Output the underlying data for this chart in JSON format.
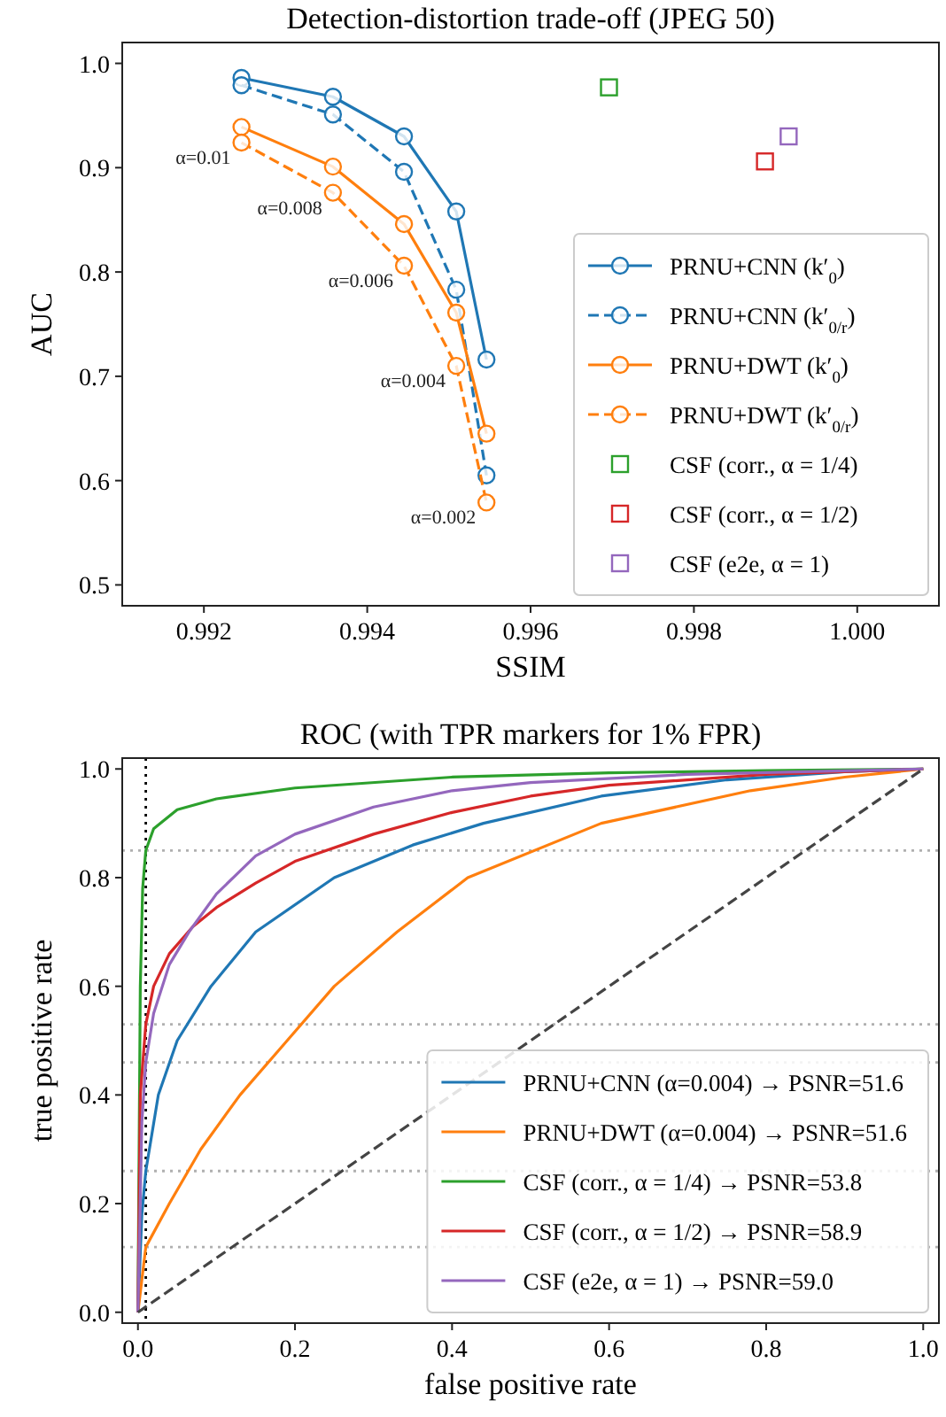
{
  "chart_data": [
    {
      "type": "line",
      "title": "Detection-distortion trade-off (JPEG 50)",
      "xlabel": "SSIM",
      "ylabel": "AUC",
      "x": [
        0.99246,
        0.99358,
        0.99445,
        0.99509,
        0.99546
      ],
      "xlim": [
        0.991,
        1.001
      ],
      "ylim": [
        0.48,
        1.02
      ],
      "xticks": [
        0.992,
        0.994,
        0.996,
        0.998,
        {
          "value": 1.0,
          "label": "1.000"
        }
      ],
      "yticks": [
        {
          "value": 0.5,
          "label": "0.5"
        },
        {
          "value": 0.6,
          "label": "0.6"
        },
        {
          "value": 0.7,
          "label": "0.7"
        },
        {
          "value": 0.8,
          "label": "0.8"
        },
        {
          "value": 0.9,
          "label": "0.9"
        },
        {
          "value": 1.0,
          "label": "1.0"
        }
      ],
      "marker": "circle",
      "legend": "bottom right",
      "grid": false,
      "series": [
        {
          "name": "PRNU+CNN (k′$_{0}$)",
          "color": "#1f77b4",
          "line_style": "solid",
          "values": [
            0.986,
            0.968,
            0.93,
            0.858,
            0.716
          ]
        },
        {
          "name": "PRNU+CNN (k′$_{0/r}$)",
          "color": "#1f77b4",
          "line_style": "dashed",
          "values": [
            0.979,
            0.951,
            0.896,
            0.783,
            0.605
          ]
        },
        {
          "name": "PRNU+DWT (k′$_{0}$)",
          "color": "#ff7f0e",
          "line_style": "solid",
          "values": [
            0.939,
            0.901,
            0.846,
            0.761,
            0.645
          ]
        },
        {
          "name": "PRNU+DWT (k′$_{0/r}$)",
          "color": "#ff7f0e",
          "line_style": "dashed",
          "values": [
            0.924,
            0.876,
            0.806,
            0.71,
            0.579
          ]
        },
        {
          "name": "CSF (corr., α = 1/4)",
          "type": "scatter",
          "marker": "square",
          "color": "#2ca02c",
          "x": [
            0.99696
          ],
          "values": [
            0.977
          ]
        },
        {
          "name": "CSF (corr., α = 1/2)",
          "type": "scatter",
          "marker": "square",
          "color": "#d62728",
          "x": [
            0.99887
          ],
          "values": [
            0.906
          ]
        },
        {
          "name": "CSF (e2e, α = 1)",
          "type": "scatter",
          "marker": "square",
          "color": "#9467bd",
          "x": [
            0.99916
          ],
          "values": [
            0.93
          ]
        }
      ],
      "annotations": [
        {
          "text": "α=0.01",
          "x": 0.99246,
          "y": 0.924
        },
        {
          "text": "α=0.008",
          "x": 0.99358,
          "y": 0.876
        },
        {
          "text": "α=0.006",
          "x": 0.99445,
          "y": 0.806
        },
        {
          "text": "α=0.004",
          "x": 0.99509,
          "y": 0.71
        },
        {
          "text": "α=0.002",
          "x": 0.99546,
          "y": 0.579
        }
      ]
    },
    {
      "type": "line",
      "title": "ROC (with TPR markers for 1% FPR)",
      "xlabel": "false positive rate",
      "ylabel": "true positive rate",
      "xlim": [
        -0.02,
        1.02
      ],
      "ylim": [
        -0.02,
        1.02
      ],
      "xticks": [
        {
          "value": 0,
          "label": "0.0"
        },
        {
          "value": 0.2,
          "label": "0.2"
        },
        {
          "value": 0.4,
          "label": "0.4"
        },
        {
          "value": 0.6,
          "label": "0.6"
        },
        {
          "value": 0.8,
          "label": "0.8"
        },
        {
          "value": 1,
          "label": "1.0"
        }
      ],
      "yticks": [
        {
          "value": 0,
          "label": "0.0"
        },
        {
          "value": 0.2,
          "label": "0.2"
        },
        {
          "value": 0.4,
          "label": "0.4"
        },
        {
          "value": 0.6,
          "label": "0.6"
        },
        {
          "value": 0.8,
          "label": "0.8"
        },
        {
          "value": 1,
          "label": "1.0"
        }
      ],
      "legend": "bottom right",
      "grid": false,
      "marker": "none",
      "series": [
        {
          "name": "PRNU+CNN (α=0.004) → PSNR=51.6",
          "color": "#1f77b4",
          "x": [
            0,
            0.005,
            0.01,
            0.026,
            0.05,
            0.093,
            0.15,
            0.25,
            0.35,
            0.44,
            0.59,
            0.75,
            0.9,
            1
          ],
          "values": [
            0,
            0.18,
            0.26,
            0.4,
            0.5,
            0.6,
            0.7,
            0.8,
            0.86,
            0.9,
            0.95,
            0.98,
            0.995,
            1
          ]
        },
        {
          "name": "PRNU+DWT (α=0.004) → PSNR=51.6",
          "color": "#ff7f0e",
          "x": [
            0,
            0.01,
            0.04,
            0.08,
            0.13,
            0.19,
            0.25,
            0.33,
            0.42,
            0.59,
            0.78,
            0.9,
            1
          ],
          "values": [
            0,
            0.12,
            0.2,
            0.3,
            0.4,
            0.5,
            0.6,
            0.7,
            0.8,
            0.9,
            0.96,
            0.985,
            1
          ]
        },
        {
          "name": "CSF (corr., α = 1/4) → PSNR=53.8",
          "color": "#2ca02c",
          "x": [
            0,
            0.003,
            0.006,
            0.01,
            0.02,
            0.05,
            0.1,
            0.2,
            0.4,
            0.6,
            0.8,
            1
          ],
          "values": [
            0,
            0.6,
            0.78,
            0.85,
            0.89,
            0.925,
            0.945,
            0.965,
            0.985,
            0.993,
            0.997,
            1
          ]
        },
        {
          "name": "CSF (corr., α = 1/2) → PSNR=58.9",
          "color": "#d62728",
          "x": [
            0,
            0.003,
            0.01,
            0.02,
            0.04,
            0.07,
            0.1,
            0.15,
            0.2,
            0.3,
            0.4,
            0.5,
            0.6,
            0.8,
            1
          ],
          "values": [
            0,
            0.4,
            0.53,
            0.6,
            0.66,
            0.71,
            0.745,
            0.79,
            0.83,
            0.88,
            0.92,
            0.95,
            0.97,
            0.99,
            1
          ]
        },
        {
          "name": "CSF (e2e, α = 1) → PSNR=59.0",
          "color": "#9467bd",
          "x": [
            0,
            0.005,
            0.01,
            0.02,
            0.04,
            0.065,
            0.1,
            0.15,
            0.2,
            0.3,
            0.4,
            0.5,
            0.7,
            1
          ],
          "values": [
            0,
            0.35,
            0.46,
            0.55,
            0.64,
            0.7,
            0.77,
            0.84,
            0.88,
            0.93,
            0.96,
            0.975,
            0.99,
            1
          ]
        },
        {
          "color": "#444444",
          "line_style": "dashed",
          "x": [
            0,
            1
          ],
          "values": [
            0,
            1
          ]
        }
      ],
      "ref_lines": [
        {
          "axis": "x",
          "value": 0.01,
          "color": "#000000",
          "line_style": "dotted"
        },
        {
          "axis": "y",
          "value": 0.85,
          "color": "#b0b0b0",
          "line_style": "dotted"
        },
        {
          "axis": "y",
          "value": 0.53,
          "color": "#b0b0b0",
          "line_style": "dotted"
        },
        {
          "axis": "y",
          "value": 0.46,
          "color": "#b0b0b0",
          "line_style": "dotted"
        },
        {
          "axis": "y",
          "value": 0.26,
          "color": "#b0b0b0",
          "line_style": "dotted"
        },
        {
          "axis": "y",
          "value": 0.12,
          "color": "#b0b0b0",
          "line_style": "dotted"
        }
      ]
    }
  ]
}
